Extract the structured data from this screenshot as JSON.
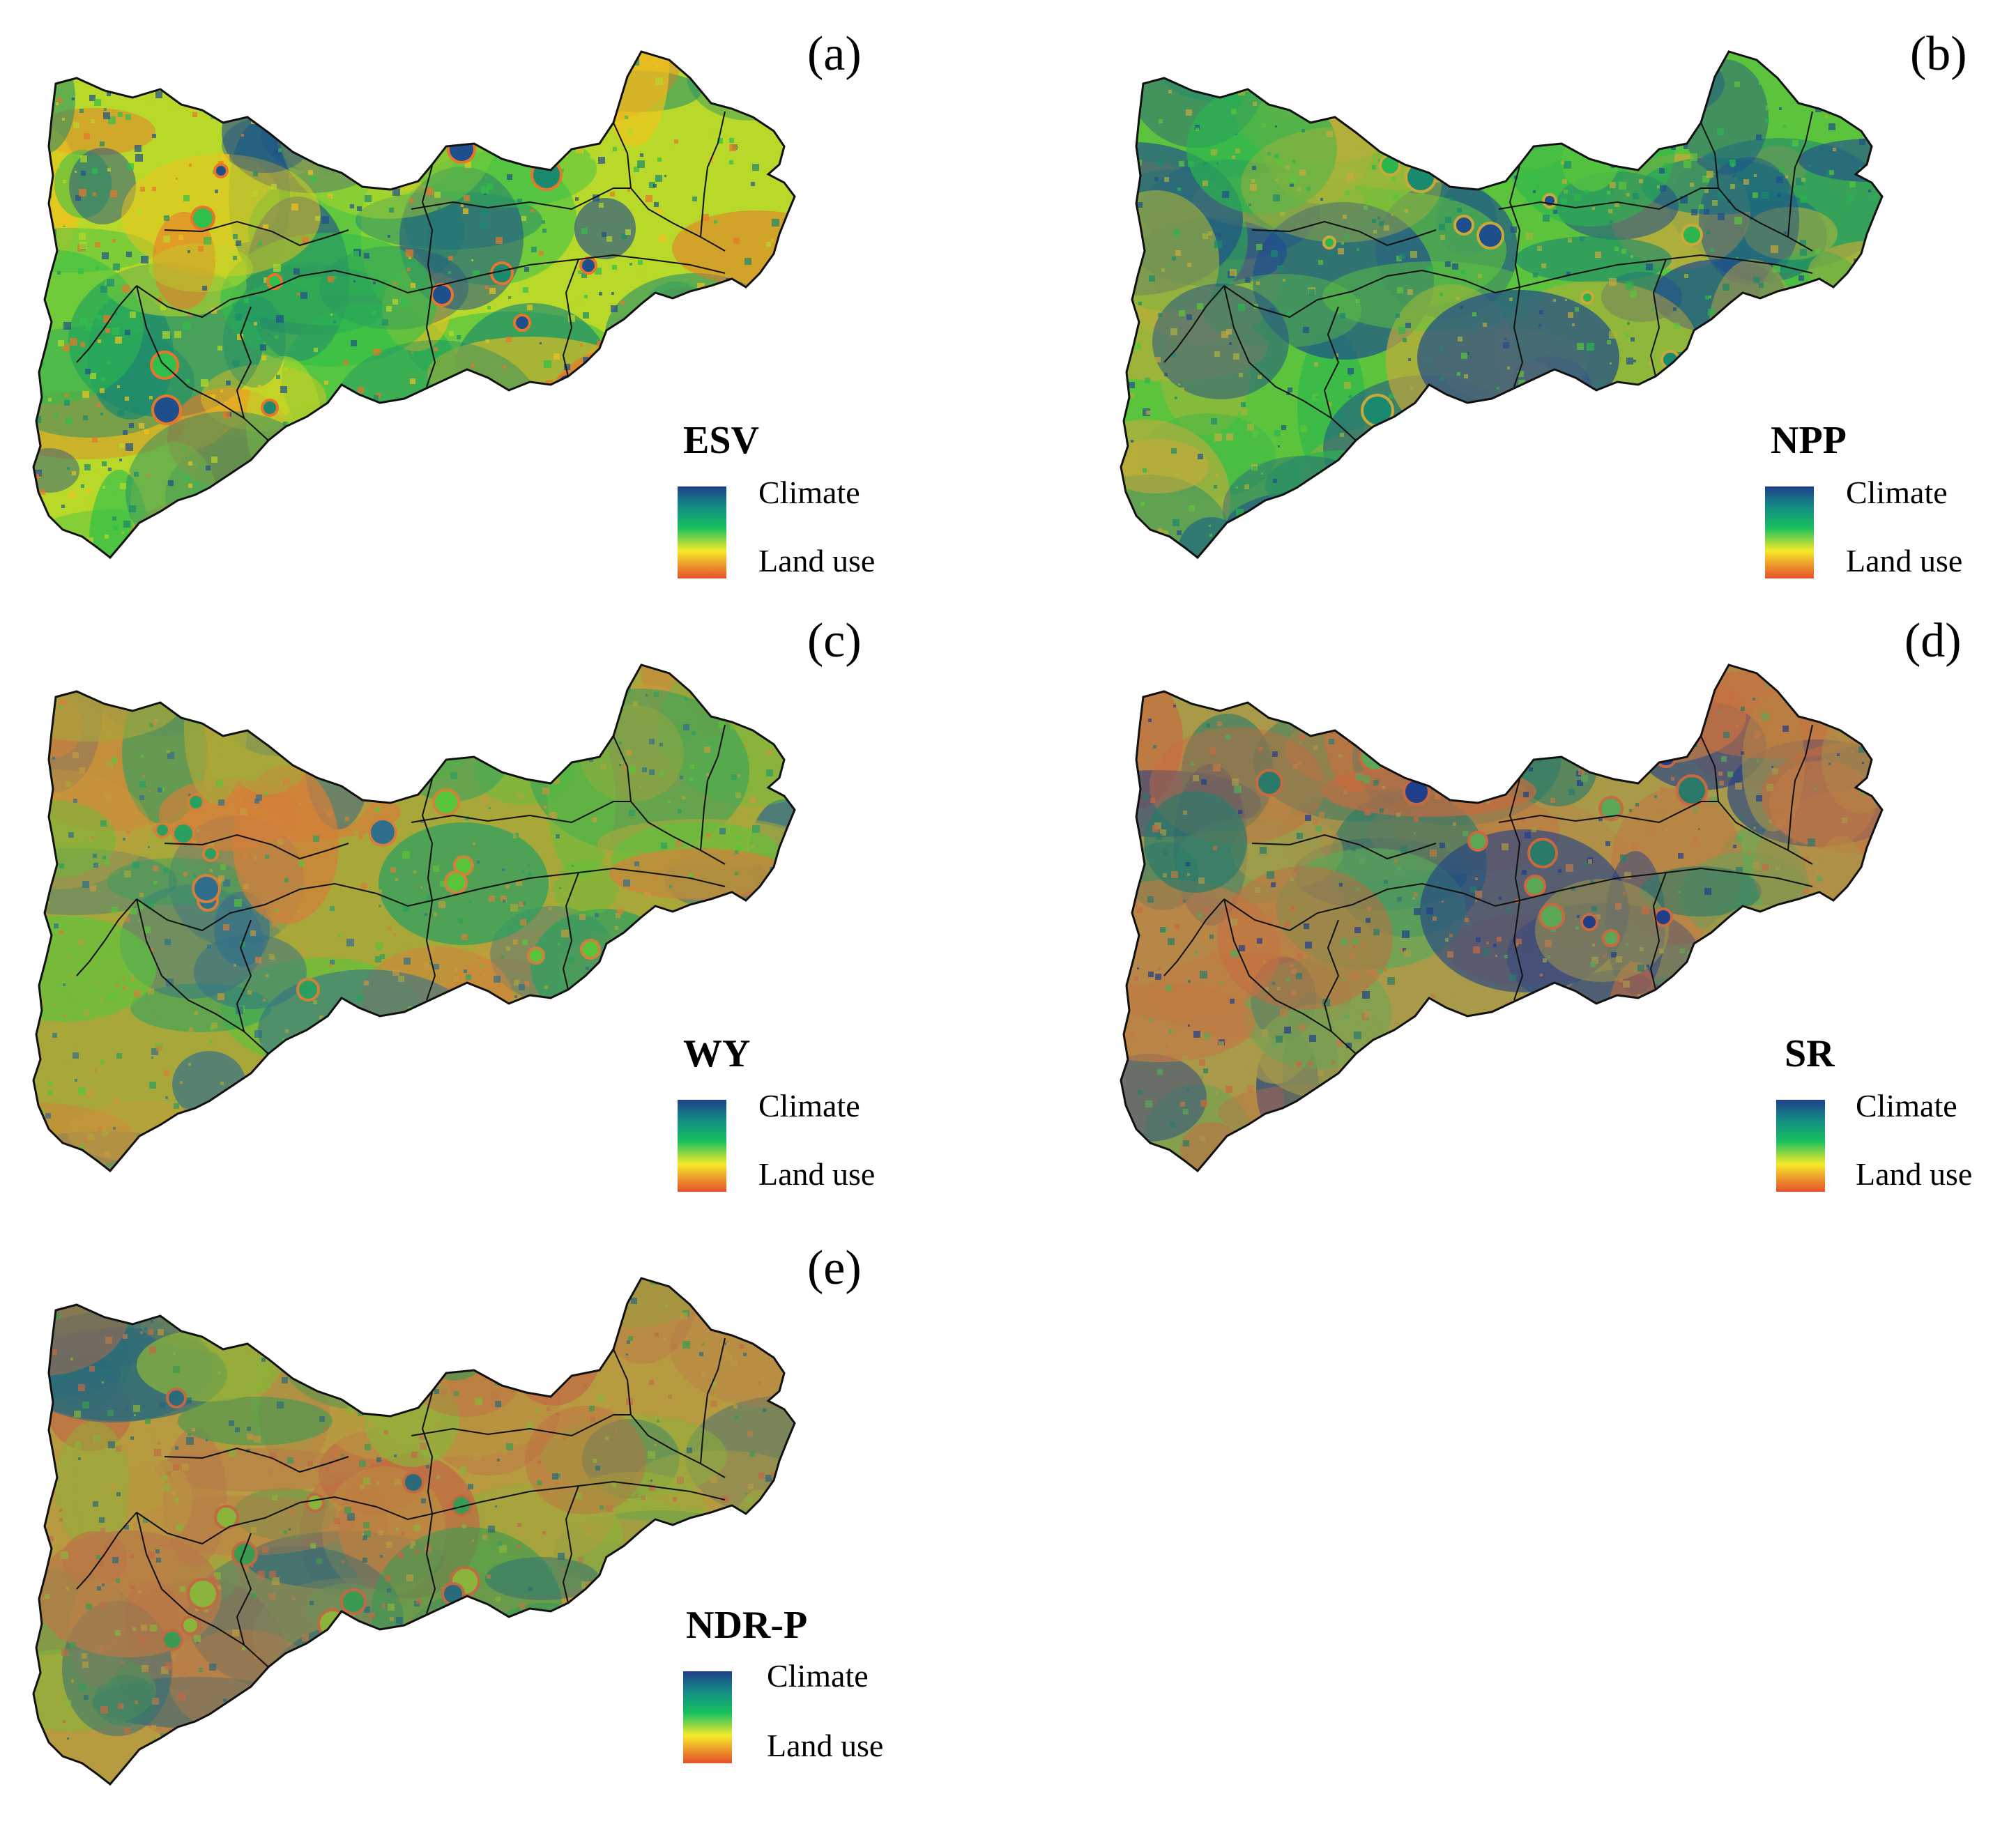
{
  "panels": [
    {
      "id": "a",
      "label": "(a)",
      "layer": "ESV",
      "legend": {
        "top": "Climate",
        "bottom": "Land use"
      },
      "palette": [
        "#1f4e8c",
        "#1a8a6e",
        "#2fbf4a",
        "#b8d82a",
        "#f2c21c",
        "#e8762a"
      ]
    },
    {
      "id": "b",
      "label": "(b)",
      "layer": "NPP",
      "legend": {
        "top": "Climate",
        "bottom": "Land use"
      },
      "palette": [
        "#1f4e8c",
        "#1a8a6e",
        "#2ab54e",
        "#5cc43c",
        "#a9b33a",
        "#c9a93a"
      ]
    },
    {
      "id": "c",
      "label": "(c)",
      "layer": "WY",
      "legend": {
        "top": "Climate",
        "bottom": "Land use"
      },
      "palette": [
        "#2f6f8c",
        "#2aa060",
        "#58c43a",
        "#a8a83a",
        "#c69a3c",
        "#d3803a"
      ]
    },
    {
      "id": "d",
      "label": "(d)",
      "layer": "SR",
      "legend": {
        "top": "Climate",
        "bottom": "Land use"
      },
      "palette": [
        "#1f3f8a",
        "#2a7a6a",
        "#5aa858",
        "#a89a48",
        "#c07a44",
        "#c86a40"
      ]
    },
    {
      "id": "e",
      "label": "(e)",
      "layer": "NDR-P",
      "legend": {
        "top": "Climate",
        "bottom": "Land use"
      },
      "palette": [
        "#2a6a7a",
        "#3a9a52",
        "#8ab43a",
        "#b89a40",
        "#b87a48",
        "#c06a44"
      ]
    }
  ],
  "colors": {
    "boundary": "#111111",
    "background": "#ffffff"
  }
}
